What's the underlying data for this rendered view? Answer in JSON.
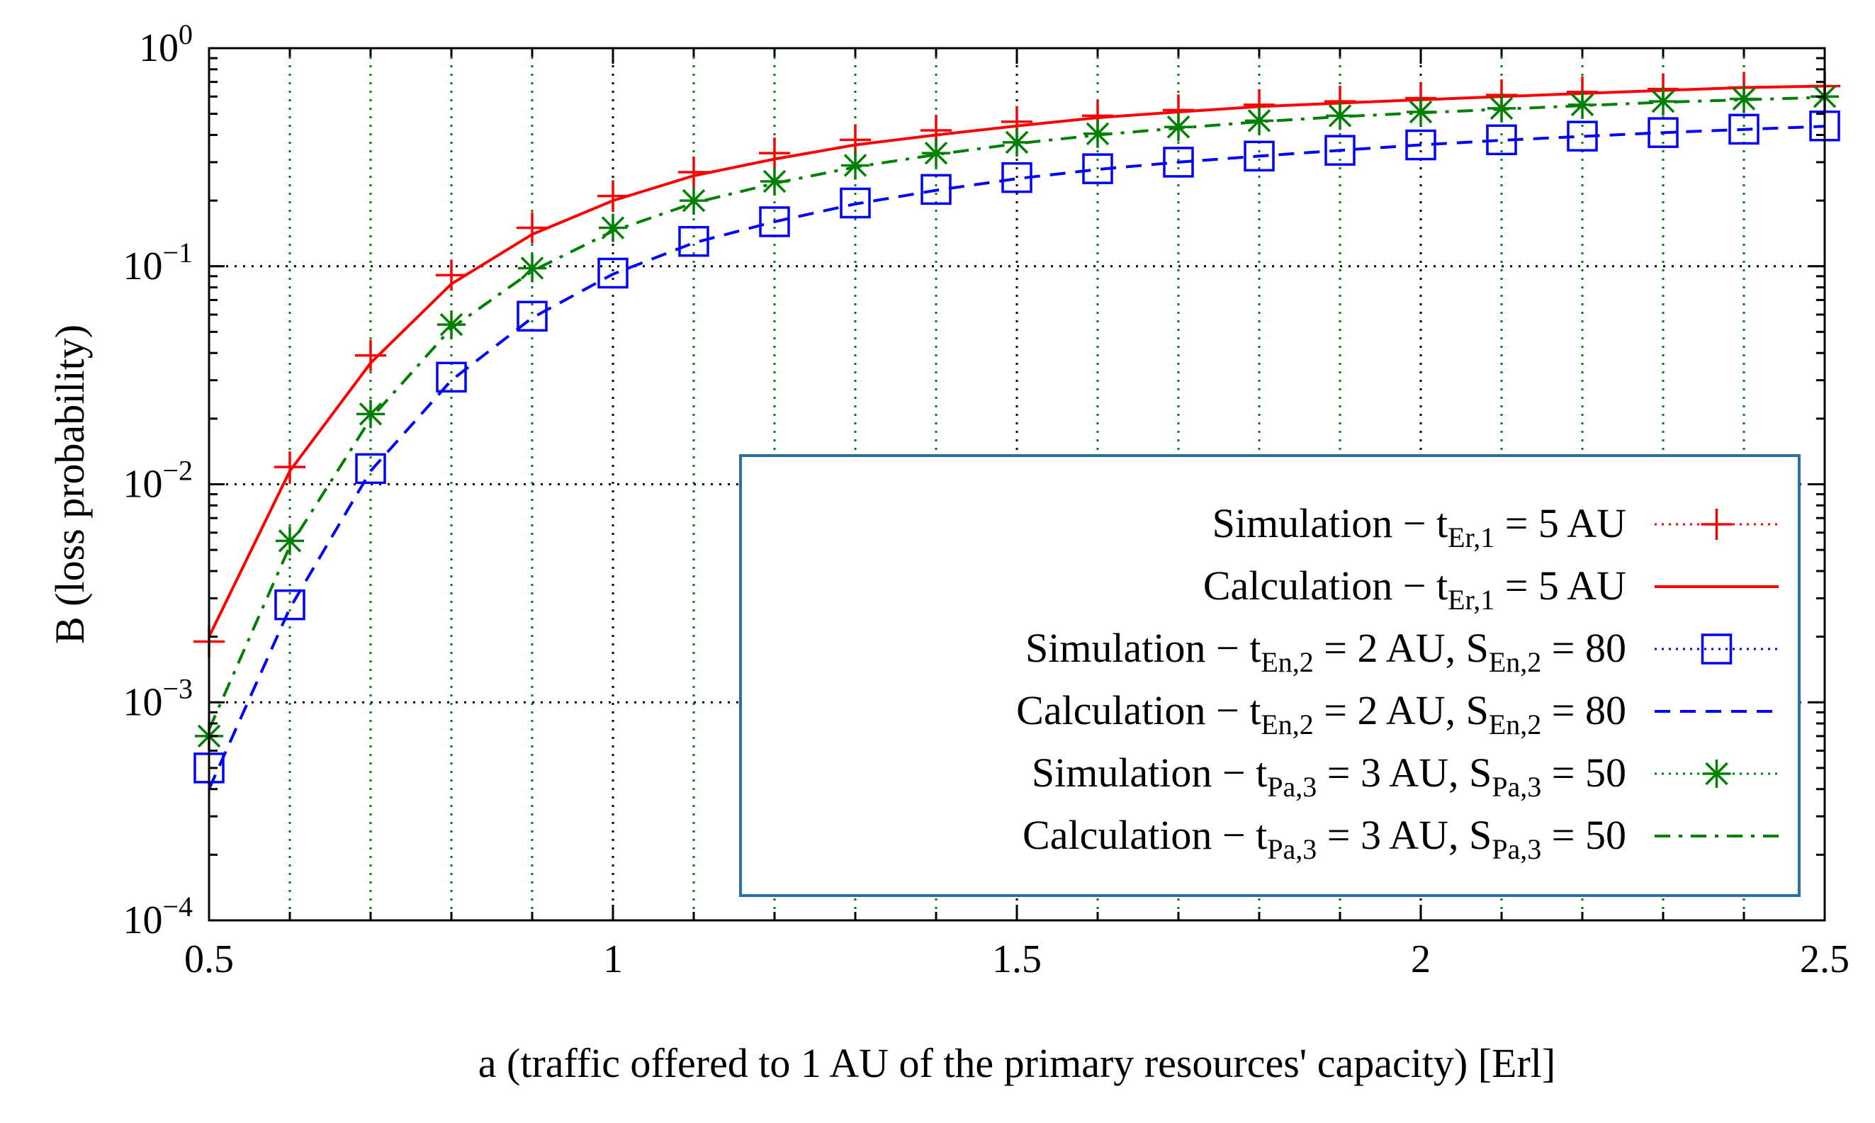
{
  "chart_data": {
    "type": "line",
    "title": "",
    "xlabel": "a (traffic offered to 1 AU of the primary resources' capacity) [Erl]",
    "ylabel": "B (loss probability)",
    "xlim": [
      0.5,
      2.5
    ],
    "ylim": [
      0.0001,
      1
    ],
    "yscale": "log",
    "grid": true,
    "legend_position": "center-right",
    "x_ticks": [
      "0.5",
      "1",
      "1.5",
      "2",
      "2.5"
    ],
    "y_ticks": [
      {
        "base": "10",
        "exp": "0"
      },
      {
        "base": "10",
        "exp": "−1"
      },
      {
        "base": "10",
        "exp": "−2"
      },
      {
        "base": "10",
        "exp": "−3"
      },
      {
        "base": "10",
        "exp": "−4"
      }
    ],
    "x": [
      0.5,
      0.6,
      0.7,
      0.8,
      0.9,
      1.0,
      1.1,
      1.2,
      1.3,
      1.4,
      1.5,
      1.6,
      1.7,
      1.8,
      1.9,
      2.0,
      2.1,
      2.2,
      2.3,
      2.4,
      2.5
    ],
    "series": [
      {
        "name": "Simulation − t_Er,1 = 5 AU",
        "legend": {
          "pre": "Simulation − t",
          "sub1": "Er,1",
          "mid": " = 5 AU",
          "sub2": "",
          "post": ""
        },
        "kind": "simulation",
        "marker": "plus",
        "line": "none",
        "color": "#ff0000",
        "values": [
          0.0019,
          0.012,
          0.039,
          0.091,
          0.15,
          0.21,
          0.27,
          0.33,
          0.38,
          0.42,
          0.46,
          0.49,
          0.52,
          0.55,
          0.57,
          0.59,
          0.61,
          0.63,
          0.65,
          0.66,
          0.67
        ]
      },
      {
        "name": "Calculation − t_Er,1 = 5 AU",
        "legend": {
          "pre": "Calculation − t",
          "sub1": "Er,1",
          "mid": " = 5 AU",
          "sub2": "",
          "post": ""
        },
        "kind": "calculation",
        "marker": "none",
        "line": "solid",
        "color": "#ff0000",
        "values": [
          0.002,
          0.0115,
          0.036,
          0.083,
          0.14,
          0.2,
          0.26,
          0.31,
          0.36,
          0.4,
          0.44,
          0.48,
          0.51,
          0.54,
          0.56,
          0.58,
          0.6,
          0.62,
          0.64,
          0.66,
          0.67
        ]
      },
      {
        "name": "Simulation − t_En,2 = 2 AU, S_En,2 = 80",
        "legend": {
          "pre": "Simulation − t",
          "sub1": "En,2",
          "mid": " = 2 AU, S",
          "sub2": "En,2",
          "post": " = 80"
        },
        "kind": "simulation",
        "marker": "square",
        "line": "none",
        "color": "#0000ff",
        "values": [
          0.0005,
          0.0028,
          0.0118,
          0.031,
          0.059,
          0.093,
          0.13,
          0.16,
          0.195,
          0.225,
          0.255,
          0.28,
          0.3,
          0.32,
          0.34,
          0.36,
          0.38,
          0.395,
          0.41,
          0.425,
          0.44
        ]
      },
      {
        "name": "Calculation − t_En,2 = 2 AU, S_En,2 = 80",
        "legend": {
          "pre": "Calculation − t",
          "sub1": "En,2",
          "mid": " = 2 AU, S",
          "sub2": "En,2",
          "post": " = 80"
        },
        "kind": "calculation",
        "marker": "none",
        "line": "dashed",
        "color": "#0000ff",
        "values": [
          0.0004,
          0.0027,
          0.0115,
          0.03,
          0.058,
          0.092,
          0.128,
          0.16,
          0.193,
          0.223,
          0.252,
          0.278,
          0.3,
          0.32,
          0.34,
          0.36,
          0.378,
          0.394,
          0.41,
          0.424,
          0.438
        ]
      },
      {
        "name": "Simulation − t_Pa,3 = 3 AU, S_Pa,3 = 50",
        "legend": {
          "pre": "Simulation − t",
          "sub1": "Pa,3",
          "mid": " = 3 AU, S",
          "sub2": "Pa,3",
          "post": " = 50"
        },
        "kind": "simulation",
        "marker": "asterisk",
        "line": "none",
        "color": "#008000",
        "values": [
          0.0007,
          0.0055,
          0.021,
          0.054,
          0.098,
          0.15,
          0.2,
          0.245,
          0.29,
          0.33,
          0.37,
          0.405,
          0.435,
          0.465,
          0.49,
          0.51,
          0.53,
          0.55,
          0.57,
          0.585,
          0.6
        ]
      },
      {
        "name": "Calculation − t_Pa,3 = 3 AU, S_Pa,3 = 50",
        "legend": {
          "pre": "Calculation − t",
          "sub1": "Pa,3",
          "mid": " = 3 AU, S",
          "sub2": "Pa,3",
          "post": " = 50"
        },
        "kind": "calculation",
        "marker": "none",
        "line": "dashdot",
        "color": "#008000",
        "values": [
          0.00075,
          0.0052,
          0.02,
          0.052,
          0.095,
          0.145,
          0.195,
          0.24,
          0.285,
          0.325,
          0.365,
          0.4,
          0.43,
          0.46,
          0.485,
          0.505,
          0.525,
          0.545,
          0.565,
          0.58,
          0.595
        ]
      }
    ]
  }
}
